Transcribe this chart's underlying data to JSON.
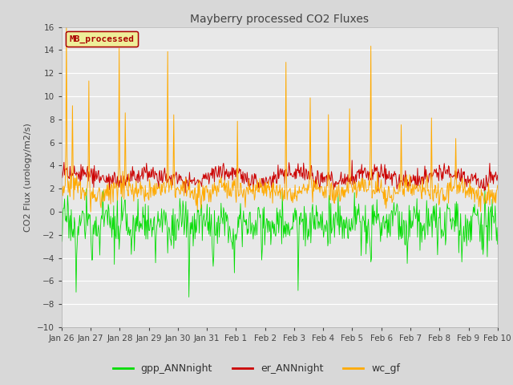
{
  "title": "Mayberry processed CO2 Fluxes",
  "ylabel": "CO2 Flux (urology/m2/s)",
  "ylim": [
    -10,
    16
  ],
  "yticks": [
    -10,
    -8,
    -6,
    -4,
    -2,
    0,
    2,
    4,
    6,
    8,
    10,
    12,
    14,
    16
  ],
  "legend_label": "MB_processed",
  "legend_text_color": "#aa0000",
  "legend_box_facecolor": "#eeee99",
  "legend_box_edgecolor": "#aa0000",
  "line_colors": {
    "gpp_ANNnight": "#00dd00",
    "er_ANNnight": "#cc0000",
    "wc_gf": "#ffaa00"
  },
  "bg_color": "#d8d8d8",
  "plot_bg_color": "#e8e8e8",
  "grid_color": "#ffffff",
  "date_labels": [
    "Jan 26",
    "Jan 27",
    "Jan 28",
    "Jan 29",
    "Jan 30",
    "Jan 31",
    "Feb 1",
    "Feb 2",
    "Feb 3",
    "Feb 4",
    "Feb 5",
    "Feb 6",
    "Feb 7",
    "Feb 8",
    "Feb 9",
    "Feb 10"
  ],
  "n_points": 720,
  "title_fontsize": 10,
  "label_fontsize": 8,
  "tick_fontsize": 7.5
}
